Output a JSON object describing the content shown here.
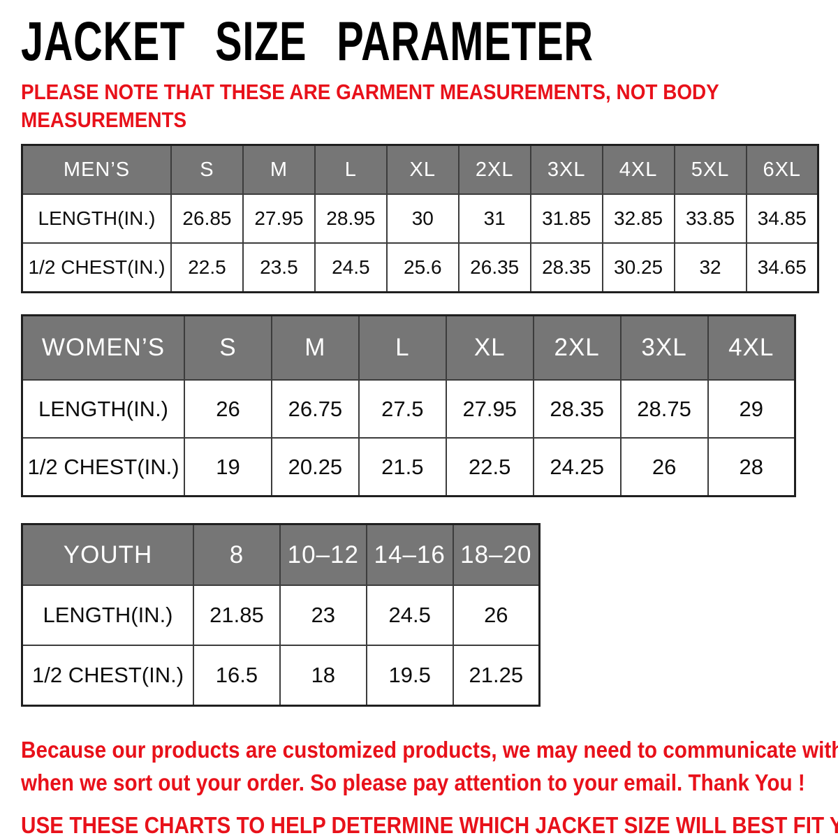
{
  "page": {
    "title": "JACKET SIZE PARAMETER",
    "note_line1": "PLEASE NOTE THAT THESE ARE GARMENT MEASUREMENTS, NOT BODY",
    "note_line2": "MEASUREMENTS",
    "footer_line1": "Because our products are customized products, we may need to communicate with you",
    "footer_line2": "when we sort out your order. So please pay attention to your email. Thank You !",
    "footer_cta": "USE THESE CHARTS TO HELP DETERMINE WHICH JACKET SIZE WILL BEST FIT YOU."
  },
  "colors": {
    "accent_red": "#e8111a",
    "header_bg": "#767676",
    "header_text": "#ffffff",
    "border": "#3c3c3c",
    "title_black": "#000000"
  },
  "tables": [
    {
      "id": "mens",
      "name": "MEN’S",
      "sizes": [
        "S",
        "M",
        "L",
        "XL",
        "2XL",
        "3XL",
        "4XL",
        "5XL",
        "6XL"
      ],
      "rows": [
        {
          "label": "LENGTH(IN.)",
          "values": [
            "26.85",
            "27.95",
            "28.95",
            "30",
            "31",
            "31.85",
            "32.85",
            "33.85",
            "34.85"
          ]
        },
        {
          "label": "1/2 CHEST(IN.)",
          "values": [
            "22.5",
            "23.5",
            "24.5",
            "25.6",
            "26.35",
            "28.35",
            "30.25",
            "32",
            "34.65"
          ]
        }
      ]
    },
    {
      "id": "womens",
      "name": "WOMEN’S",
      "sizes": [
        "S",
        "M",
        "L",
        "XL",
        "2XL",
        "3XL",
        "4XL"
      ],
      "rows": [
        {
          "label": "LENGTH(IN.)",
          "values": [
            "26",
            "26.75",
            "27.5",
            "27.95",
            "28.35",
            "28.75",
            "29"
          ]
        },
        {
          "label": "1/2 CHEST(IN.)",
          "values": [
            "19",
            "20.25",
            "21.5",
            "22.5",
            "24.25",
            "26",
            "28"
          ]
        }
      ]
    },
    {
      "id": "youth",
      "name": "YOUTH",
      "sizes": [
        "8",
        "10–12",
        "14–16",
        "18–20"
      ],
      "rows": [
        {
          "label": "LENGTH(IN.)",
          "values": [
            "21.85",
            "23",
            "24.5",
            "26"
          ]
        },
        {
          "label": "1/2 CHEST(IN.)",
          "values": [
            "16.5",
            "18",
            "19.5",
            "21.25"
          ]
        }
      ]
    }
  ]
}
